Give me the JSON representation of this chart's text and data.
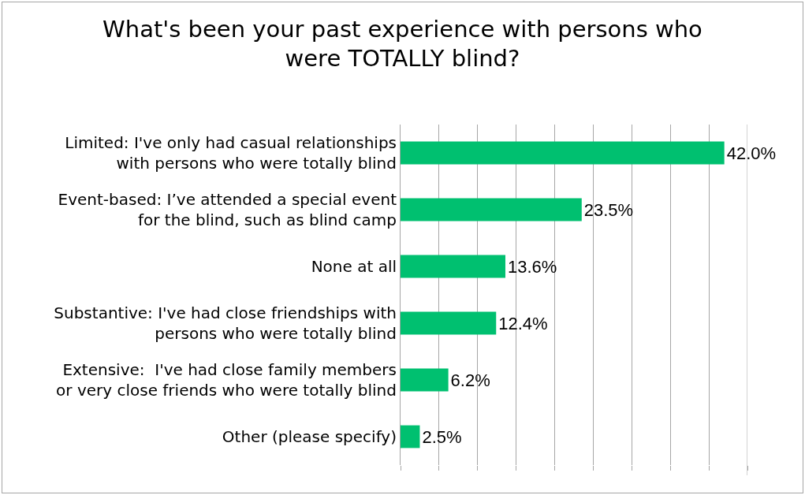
{
  "chart_data": {
    "type": "bar",
    "orientation": "horizontal",
    "title": "What's been your past experience with persons who\nwere TOTALLY blind?",
    "categories": [
      "Limited: I've only had casual relationships\nwith persons who were totally blind",
      "Event-based: I’ve attended a special event\nfor the blind, such as blind camp",
      "None at all",
      "Substantive: I've had close friendships with\npersons who were totally blind",
      "Extensive:  I've had close family members\nor very close friends who were totally blind",
      "Other (please specify)"
    ],
    "values": [
      42.0,
      23.5,
      13.6,
      12.4,
      6.2,
      2.5
    ],
    "value_labels": [
      "42.0%",
      "23.5%",
      "13.6%",
      "12.4%",
      "6.2%",
      "2.5%"
    ],
    "color": "#00c070",
    "xlim": [
      0,
      45
    ],
    "xticks": [
      {
        "value": 0,
        "label": null
      },
      {
        "value": 5,
        "label": null
      },
      {
        "value": 10,
        "label": null
      },
      {
        "value": 15,
        "label": null
      },
      {
        "value": 20,
        "label": null
      },
      {
        "value": 25,
        "label": null
      },
      {
        "value": 30,
        "label": null
      },
      {
        "value": 35,
        "label": null
      },
      {
        "value": 40,
        "label": null
      },
      {
        "value": 45,
        "label": null
      }
    ],
    "grid": "x",
    "tick_labels": "y"
  }
}
